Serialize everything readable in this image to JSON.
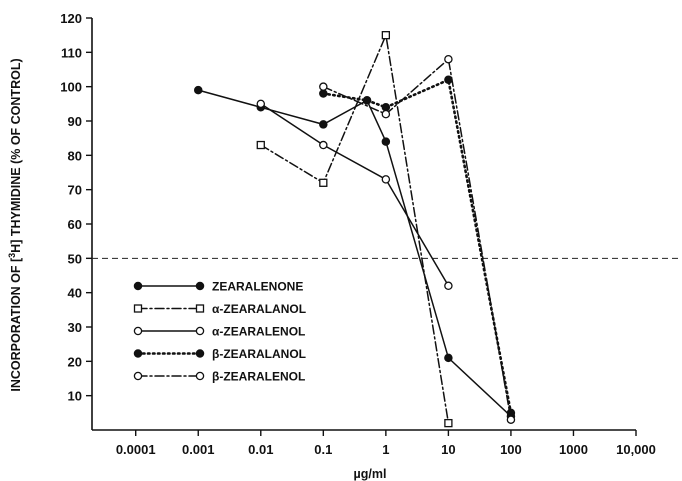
{
  "chart_data": {
    "type": "line",
    "title": "",
    "xlabel": "µg/ml",
    "ylabel": "INCORPORATION OF [³H] THYMIDINE (% OF CONTROL)",
    "ylabel_parts": {
      "before": "INCORPORATION OF [",
      "sup": "3",
      "after": "H] THYMIDINE (% OF CONTROL)"
    },
    "x_scale": "log",
    "x_ticks": [
      0.0001,
      0.001,
      0.01,
      0.1,
      1,
      10,
      100,
      1000,
      10000
    ],
    "x_tick_labels": [
      "0.0001",
      "0.001",
      "0.01",
      "0.1",
      "1",
      "10",
      "100",
      "1000",
      "10,000"
    ],
    "xlim": [
      2e-05,
      10000
    ],
    "y_ticks": [
      10,
      20,
      30,
      40,
      50,
      60,
      70,
      80,
      90,
      100,
      110,
      120
    ],
    "y_tick_labels": [
      "10",
      "20",
      "30",
      "40",
      "50",
      "60",
      "70",
      "80",
      "90",
      "100",
      "110",
      "120"
    ],
    "ylim": [
      0,
      120
    ],
    "reference_line": {
      "y": 50,
      "style": "dashed"
    },
    "grid": false,
    "legend_position": "bottom-left",
    "series": [
      {
        "name": "ZEARALENONE",
        "marker": "filled-circle",
        "line": "solid",
        "x": [
          0.001,
          0.01,
          0.1,
          0.5,
          1,
          10,
          100
        ],
        "y": [
          99,
          94,
          89,
          96,
          84,
          21,
          4
        ]
      },
      {
        "name": "α-ZEARALANOL",
        "marker": "open-square",
        "line": "dashdot",
        "x": [
          0.01,
          0.1,
          1,
          10
        ],
        "y": [
          83,
          72,
          115,
          2
        ]
      },
      {
        "name": "α-ZEARALENOL",
        "marker": "open-circle",
        "line": "solid",
        "x": [
          0.01,
          0.1,
          1,
          10
        ],
        "y": [
          95,
          83,
          73,
          42
        ]
      },
      {
        "name": "β-ZEARALANOL",
        "marker": "filled-circle",
        "line": "dotted",
        "x": [
          0.1,
          0.5,
          1,
          10,
          100
        ],
        "y": [
          98,
          96,
          94,
          102,
          5
        ]
      },
      {
        "name": "β-ZEARALENOL",
        "marker": "open-circle",
        "line": "dashdot",
        "x": [
          0.1,
          1,
          10,
          100
        ],
        "y": [
          100,
          92,
          108,
          3
        ]
      }
    ]
  }
}
